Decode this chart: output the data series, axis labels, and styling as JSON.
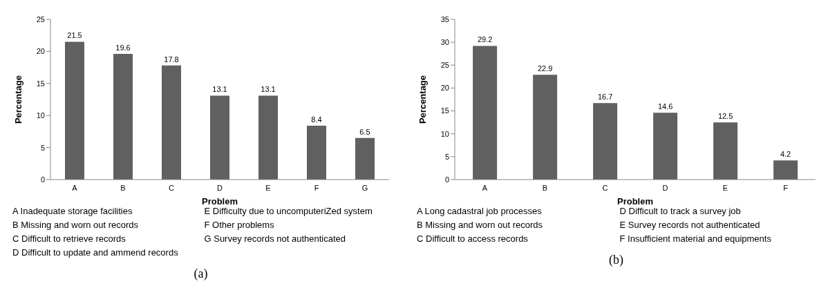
{
  "chart_data": [
    {
      "type": "bar",
      "title": "(a)",
      "xlabel": "Problem",
      "ylabel": "Percentage",
      "categories": [
        "A",
        "B",
        "C",
        "D",
        "E",
        "F",
        "G"
      ],
      "values": [
        21.5,
        19.6,
        17.8,
        13.1,
        13.1,
        8.4,
        6.5
      ],
      "color": "#606060",
      "ylim": [
        0,
        25
      ],
      "yticks": [
        0,
        5,
        10,
        15,
        20,
        25
      ],
      "grid": false,
      "data_labels": true,
      "annotations": [
        "A   Inadequate storage facilities",
        "B   Missing and worn out records",
        "C   Difficult to retrieve records",
        "D   Difficult to update and ammend records",
        "E   Difficulty due to uncomputeriZed system",
        "F   Other problems",
        "G   Survey records not authenticated"
      ]
    },
    {
      "type": "bar",
      "title": "(b)",
      "xlabel": "Problem",
      "ylabel": "Percentage",
      "categories": [
        "A",
        "B",
        "C",
        "D",
        "E",
        "F"
      ],
      "values": [
        29.2,
        22.9,
        16.7,
        14.6,
        12.5,
        4.2
      ],
      "color": "#606060",
      "ylim": [
        0,
        35
      ],
      "yticks": [
        0,
        5,
        10,
        15,
        20,
        25,
        30,
        35
      ],
      "grid": false,
      "data_labels": true,
      "annotations": [
        "A   Long cadastral job processes",
        "B   Missing and worn out records",
        "C   Difficult to access records",
        "D   Difficult to track a survey job",
        "E   Survey records not authenticated",
        "F   Insufficient material and equipments"
      ]
    }
  ]
}
